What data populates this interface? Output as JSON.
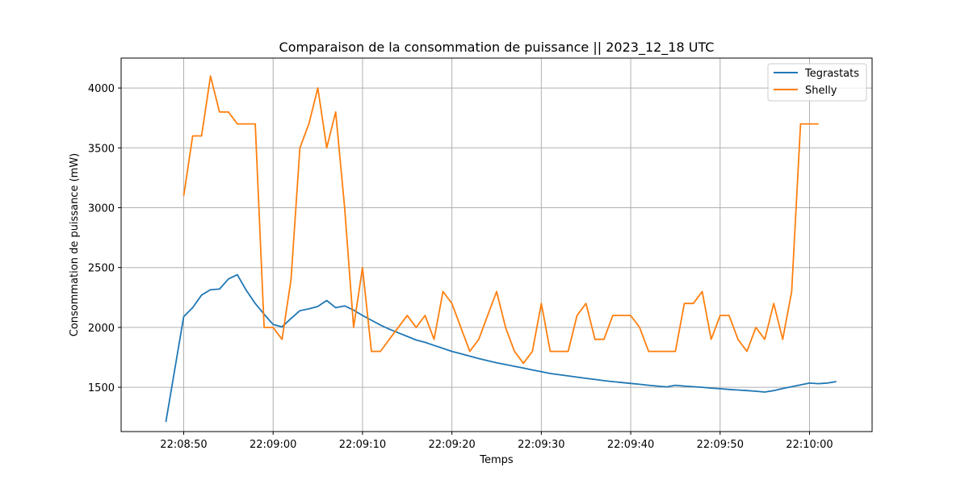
{
  "chart_data": {
    "type": "line",
    "title": "Comparaison de la consommation de puissance  ||  2023_12_18 UTC",
    "xlabel": "Temps",
    "ylabel": "Consommation de puissance (mW)",
    "grid": true,
    "legend_position": "top-right",
    "x_ticks": [
      "22:08:50",
      "22:09:00",
      "22:09:10",
      "22:09:20",
      "22:09:30",
      "22:09:40",
      "22:09:50",
      "22:10:00"
    ],
    "y_ticks": [
      "1500",
      "2000",
      "2500",
      "3000",
      "3500",
      "4000"
    ],
    "xlim": [
      "22:08:43",
      "22:10:07"
    ],
    "ylim": [
      1130,
      4250
    ],
    "series": [
      {
        "name": "Tegrastats",
        "color": "#1f77b4",
        "x": [
          "22:08:48",
          "22:08:50",
          "22:08:51",
          "22:08:52",
          "22:08:53",
          "22:08:54",
          "22:08:55",
          "22:08:56",
          "22:08:57",
          "22:08:58",
          "22:08:59",
          "22:09:00",
          "22:09:01",
          "22:09:02",
          "22:09:03",
          "22:09:04",
          "22:09:05",
          "22:09:06",
          "22:09:07",
          "22:09:08",
          "22:09:09",
          "22:09:10",
          "22:09:11",
          "22:09:12",
          "22:09:13",
          "22:09:14",
          "22:09:15",
          "22:09:16",
          "22:09:17",
          "22:09:18",
          "22:09:19",
          "22:09:20",
          "22:09:21",
          "22:09:22",
          "22:09:23",
          "22:09:24",
          "22:09:25",
          "22:09:26",
          "22:09:27",
          "22:09:28",
          "22:09:29",
          "22:09:30",
          "22:09:31",
          "22:09:32",
          "22:09:33",
          "22:09:34",
          "22:09:35",
          "22:09:36",
          "22:09:37",
          "22:09:38",
          "22:09:39",
          "22:09:40",
          "22:09:41",
          "22:09:42",
          "22:09:43",
          "22:09:44",
          "22:09:45",
          "22:09:46",
          "22:09:47",
          "22:09:48",
          "22:09:49",
          "22:09:50",
          "22:09:51",
          "22:09:52",
          "22:09:53",
          "22:09:54",
          "22:09:55",
          "22:09:56",
          "22:09:57",
          "22:09:58",
          "22:09:59",
          "22:10:00",
          "22:10:01",
          "22:10:02",
          "22:10:03"
        ],
        "y": [
          1210,
          2090,
          2165,
          2270,
          2315,
          2320,
          2405,
          2440,
          2310,
          2200,
          2110,
          2025,
          2005,
          2075,
          2140,
          2155,
          2175,
          2225,
          2165,
          2180,
          2145,
          2100,
          2060,
          2020,
          1985,
          1955,
          1925,
          1895,
          1875,
          1850,
          1825,
          1800,
          1780,
          1760,
          1740,
          1722,
          1705,
          1690,
          1675,
          1660,
          1645,
          1630,
          1615,
          1605,
          1595,
          1585,
          1575,
          1565,
          1555,
          1547,
          1540,
          1532,
          1525,
          1517,
          1510,
          1503,
          1517,
          1510,
          1505,
          1500,
          1493,
          1488,
          1482,
          1477,
          1472,
          1467,
          1460,
          1472,
          1490,
          1505,
          1520,
          1535,
          1530,
          1535,
          1548
        ]
      },
      {
        "name": "Shelly",
        "color": "#ff7f0e",
        "x": [
          "22:08:50",
          "22:08:51",
          "22:08:52",
          "22:08:53",
          "22:08:54",
          "22:08:55",
          "22:08:56",
          "22:08:57",
          "22:08:58",
          "22:08:59",
          "22:09:00",
          "22:09:01",
          "22:09:02",
          "22:09:03",
          "22:09:04",
          "22:09:05",
          "22:09:06",
          "22:09:07",
          "22:09:08",
          "22:09:09",
          "22:09:10",
          "22:09:11",
          "22:09:12",
          "22:09:13",
          "22:09:14",
          "22:09:15",
          "22:09:16",
          "22:09:17",
          "22:09:18",
          "22:09:19",
          "22:09:20",
          "22:09:21",
          "22:09:22",
          "22:09:23",
          "22:09:24",
          "22:09:25",
          "22:09:26",
          "22:09:27",
          "22:09:28",
          "22:09:29",
          "22:09:30",
          "22:09:31",
          "22:09:32",
          "22:09:33",
          "22:09:34",
          "22:09:35",
          "22:09:36",
          "22:09:37",
          "22:09:38",
          "22:09:39",
          "22:09:40",
          "22:09:41",
          "22:09:42",
          "22:09:43",
          "22:09:44",
          "22:09:45",
          "22:09:46",
          "22:09:47",
          "22:09:48",
          "22:09:49",
          "22:09:50",
          "22:09:51",
          "22:09:52",
          "22:09:53",
          "22:09:54",
          "22:09:55",
          "22:09:56",
          "22:09:57",
          "22:09:58",
          "22:09:59",
          "22:10:00",
          "22:10:01"
        ],
        "y": [
          3100,
          3600,
          3600,
          4100,
          3800,
          3800,
          3700,
          3700,
          3700,
          2000,
          2000,
          1900,
          2400,
          3500,
          3700,
          4000,
          3500,
          3800,
          3000,
          2000,
          2500,
          1800,
          1800,
          1900,
          2000,
          2100,
          2000,
          2100,
          1900,
          2300,
          2200,
          2000,
          1800,
          1900,
          2100,
          2300,
          2000,
          1800,
          1700,
          1800,
          2200,
          1800,
          1800,
          1800,
          2100,
          2200,
          1900,
          1900,
          2100,
          2100,
          2100,
          2000,
          1800,
          1800,
          1800,
          1800,
          2200,
          2200,
          2300,
          1900,
          2100,
          2100,
          1900,
          1800,
          2000,
          1900,
          2200,
          1900,
          2300,
          3700,
          3700,
          3700
        ]
      }
    ]
  }
}
